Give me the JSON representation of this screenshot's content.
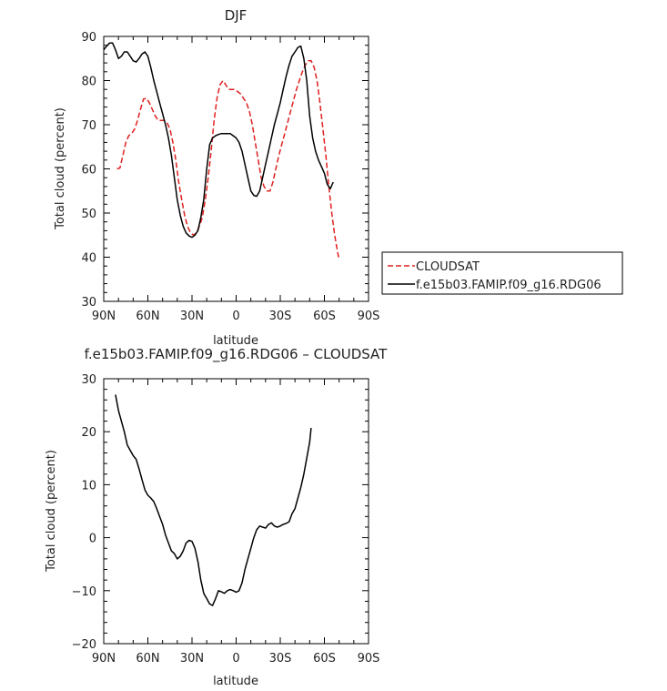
{
  "chart_data": [
    {
      "type": "line",
      "title": "DJF",
      "xlabel": "latitude",
      "ylabel": "Total cloud (percent)",
      "xlim": [
        90,
        -90
      ],
      "ylim": [
        30,
        90
      ],
      "xticks": [
        90,
        60,
        30,
        0,
        -30,
        -60,
        -90
      ],
      "xticklabels": [
        "90N",
        "60N",
        "30N",
        "0",
        "30S",
        "60S",
        "90S"
      ],
      "yticks": [
        30,
        40,
        50,
        60,
        70,
        80,
        90
      ],
      "legend": "right",
      "series": [
        {
          "name": "CLOUDSAT",
          "color": "#e02020",
          "dash": "dashed",
          "points": [
            [
              81,
              60
            ],
            [
              79,
              60.2
            ],
            [
              77,
              63
            ],
            [
              75,
              66
            ],
            [
              73,
              67.5
            ],
            [
              71,
              68
            ],
            [
              69,
              69
            ],
            [
              67,
              71
            ],
            [
              65,
              73.5
            ],
            [
              63,
              75.8
            ],
            [
              61,
              76
            ],
            [
              59,
              75
            ],
            [
              57,
              73.5
            ],
            [
              55,
              72
            ],
            [
              53,
              71
            ],
            [
              51,
              71
            ],
            [
              49,
              71
            ],
            [
              47,
              70.5
            ],
            [
              45,
              69
            ],
            [
              43,
              66
            ],
            [
              41,
              62
            ],
            [
              39,
              57
            ],
            [
              37,
              53
            ],
            [
              35,
              49.5
            ],
            [
              33,
              47
            ],
            [
              31,
              45.5
            ],
            [
              29,
              45
            ],
            [
              27,
              45.5
            ],
            [
              25,
              47
            ],
            [
              23,
              49
            ],
            [
              21,
              53
            ],
            [
              19,
              58
            ],
            [
              17,
              64
            ],
            [
              15,
              71
            ],
            [
              13,
              76
            ],
            [
              11,
              79
            ],
            [
              9,
              80
            ],
            [
              7,
              79
            ],
            [
              5,
              78
            ],
            [
              3,
              78
            ],
            [
              1,
              78
            ],
            [
              -1,
              77.5
            ],
            [
              -3,
              77
            ],
            [
              -5,
              76
            ],
            [
              -7,
              75
            ],
            [
              -9,
              73
            ],
            [
              -11,
              70
            ],
            [
              -13,
              66
            ],
            [
              -15,
              62
            ],
            [
              -17,
              58
            ],
            [
              -19,
              56
            ],
            [
              -21,
              55
            ],
            [
              -23,
              55
            ],
            [
              -25,
              57
            ],
            [
              -27,
              60
            ],
            [
              -29,
              63
            ],
            [
              -31,
              65.5
            ],
            [
              -33,
              68
            ],
            [
              -35,
              70.5
            ],
            [
              -37,
              73
            ],
            [
              -39,
              75.5
            ],
            [
              -41,
              78
            ],
            [
              -43,
              80
            ],
            [
              -45,
              82
            ],
            [
              -47,
              83.5
            ],
            [
              -49,
              84.5
            ],
            [
              -51,
              84.5
            ],
            [
              -53,
              83
            ],
            [
              -55,
              80
            ],
            [
              -57,
              75
            ],
            [
              -59,
              69
            ],
            [
              -61,
              63
            ],
            [
              -63,
              56
            ],
            [
              -65,
              50
            ],
            [
              -67,
              45
            ],
            [
              -69,
              41
            ],
            [
              -70,
              39.5
            ]
          ]
        },
        {
          "name": "f.e15b03.FAMIP.f09_g16.RDG06",
          "color": "#000000",
          "dash": "solid",
          "points": [
            [
              90,
              87
            ],
            [
              88,
              87.8
            ],
            [
              86,
              88.5
            ],
            [
              84,
              88.5
            ],
            [
              82,
              87
            ],
            [
              80,
              85
            ],
            [
              78,
              85.5
            ],
            [
              76,
              86.5
            ],
            [
              74,
              86.5
            ],
            [
              72,
              85.5
            ],
            [
              70,
              84.5
            ],
            [
              68,
              84.2
            ],
            [
              66,
              85
            ],
            [
              64,
              86
            ],
            [
              62,
              86.5
            ],
            [
              60,
              85.5
            ],
            [
              58,
              83
            ],
            [
              56,
              80
            ],
            [
              54,
              77.5
            ],
            [
              52,
              75
            ],
            [
              50,
              72.5
            ],
            [
              48,
              70
            ],
            [
              46,
              67
            ],
            [
              44,
              63
            ],
            [
              42,
              58
            ],
            [
              40,
              53
            ],
            [
              38,
              49.5
            ],
            [
              36,
              47
            ],
            [
              34,
              45.5
            ],
            [
              32,
              44.8
            ],
            [
              30,
              44.5
            ],
            [
              28,
              45
            ],
            [
              26,
              46
            ],
            [
              24,
              49
            ],
            [
              22,
              53
            ],
            [
              20,
              60
            ],
            [
              18,
              65.5
            ],
            [
              16,
              67
            ],
            [
              14,
              67.5
            ],
            [
              12,
              67.8
            ],
            [
              10,
              68
            ],
            [
              8,
              68
            ],
            [
              6,
              68
            ],
            [
              4,
              68
            ],
            [
              2,
              67.5
            ],
            [
              0,
              67
            ],
            [
              -2,
              66
            ],
            [
              -4,
              64
            ],
            [
              -6,
              61
            ],
            [
              -8,
              58
            ],
            [
              -10,
              55
            ],
            [
              -12,
              54
            ],
            [
              -14,
              53.8
            ],
            [
              -16,
              55
            ],
            [
              -18,
              58
            ],
            [
              -20,
              61
            ],
            [
              -22,
              64
            ],
            [
              -24,
              67
            ],
            [
              -26,
              70
            ],
            [
              -28,
              72.5
            ],
            [
              -30,
              75
            ],
            [
              -32,
              78
            ],
            [
              -34,
              81
            ],
            [
              -36,
              83.5
            ],
            [
              -38,
              85.5
            ],
            [
              -40,
              86.5
            ],
            [
              -42,
              87.5
            ],
            [
              -44,
              87.8
            ],
            [
              -46,
              85
            ],
            [
              -48,
              80
            ],
            [
              -50,
              72
            ],
            [
              -52,
              67
            ],
            [
              -54,
              64
            ],
            [
              -56,
              62
            ],
            [
              -58,
              60.5
            ],
            [
              -60,
              59
            ],
            [
              -62,
              56.5
            ],
            [
              -64,
              55.5
            ],
            [
              -66,
              57
            ]
          ]
        }
      ]
    },
    {
      "type": "line",
      "title": "f.e15b03.FAMIP.f09_g16.RDG06 – CLOUDSAT",
      "xlabel": "latitude",
      "ylabel": "Total cloud (percent)",
      "xlim": [
        90,
        -90
      ],
      "ylim": [
        -20,
        30
      ],
      "xticks": [
        90,
        60,
        30,
        0,
        -30,
        -60,
        -90
      ],
      "xticklabels": [
        "90N",
        "60N",
        "30N",
        "0",
        "30S",
        "60S",
        "90S"
      ],
      "yticks": [
        -20,
        -10,
        0,
        10,
        20,
        30
      ],
      "yticklabels": [
        "−20",
        "−10",
        "0",
        "10",
        "20",
        "30"
      ],
      "series": [
        {
          "color": "#000000",
          "dash": "solid",
          "points": [
            [
              82,
              27
            ],
            [
              80,
              24
            ],
            [
              78,
              22
            ],
            [
              76,
              20
            ],
            [
              74,
              17.5
            ],
            [
              72,
              16.5
            ],
            [
              70,
              15.5
            ],
            [
              68,
              14.8
            ],
            [
              66,
              13
            ],
            [
              64,
              11
            ],
            [
              62,
              9
            ],
            [
              60,
              8
            ],
            [
              58,
              7.5
            ],
            [
              56,
              6.8
            ],
            [
              54,
              5.5
            ],
            [
              52,
              4
            ],
            [
              50,
              2.5
            ],
            [
              48,
              0.5
            ],
            [
              46,
              -1
            ],
            [
              44,
              -2.5
            ],
            [
              42,
              -3
            ],
            [
              40,
              -4
            ],
            [
              38,
              -3.5
            ],
            [
              36,
              -2.5
            ],
            [
              34,
              -1
            ],
            [
              32,
              -0.5
            ],
            [
              30,
              -0.7
            ],
            [
              28,
              -2
            ],
            [
              26,
              -4.5
            ],
            [
              24,
              -8
            ],
            [
              22,
              -10.5
            ],
            [
              20,
              -11.5
            ],
            [
              18,
              -12.5
            ],
            [
              16,
              -12.8
            ],
            [
              14,
              -11.5
            ],
            [
              12,
              -10
            ],
            [
              10,
              -10.2
            ],
            [
              8,
              -10.5
            ],
            [
              6,
              -10
            ],
            [
              4,
              -9.8
            ],
            [
              2,
              -10
            ],
            [
              0,
              -10.3
            ],
            [
              -2,
              -10
            ],
            [
              -4,
              -8.5
            ],
            [
              -6,
              -6
            ],
            [
              -8,
              -4
            ],
            [
              -10,
              -2
            ],
            [
              -12,
              0
            ],
            [
              -14,
              1.5
            ],
            [
              -16,
              2.2
            ],
            [
              -18,
              2
            ],
            [
              -20,
              1.8
            ],
            [
              -22,
              2.5
            ],
            [
              -24,
              2.8
            ],
            [
              -26,
              2.2
            ],
            [
              -28,
              2
            ],
            [
              -30,
              2.2
            ],
            [
              -32,
              2.5
            ],
            [
              -34,
              2.7
            ],
            [
              -36,
              3
            ],
            [
              -38,
              4.5
            ],
            [
              -40,
              5.5
            ],
            [
              -42,
              7.5
            ],
            [
              -44,
              9.5
            ],
            [
              -46,
              12
            ],
            [
              -48,
              15
            ],
            [
              -50,
              18
            ],
            [
              -51,
              20.7
            ]
          ]
        }
      ]
    }
  ]
}
